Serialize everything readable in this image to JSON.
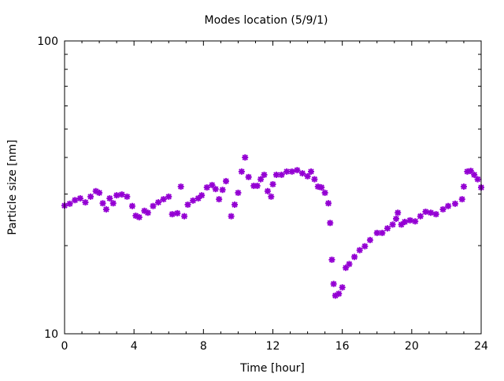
{
  "chart_data": {
    "type": "scatter",
    "title": "Modes location (5/9/1)",
    "xlabel": "Time [hour]",
    "ylabel": "Particle size [nm]",
    "xlim": [
      0,
      24
    ],
    "ylim": [
      10,
      100
    ],
    "yscale": "log",
    "xticks": [
      "0",
      "4",
      "8",
      "12",
      "16",
      "20",
      "24"
    ],
    "yticks": [
      "10",
      "100"
    ],
    "grid": false,
    "marker_color": "#9400d3",
    "x": [
      0,
      0.3,
      0.6,
      0.9,
      1.2,
      1.5,
      1.8,
      2.0,
      2.2,
      2.4,
      2.6,
      2.8,
      3.0,
      3.3,
      3.6,
      3.9,
      4.1,
      4.3,
      4.6,
      4.8,
      5.1,
      5.4,
      5.7,
      6.0,
      6.2,
      6.5,
      6.7,
      6.9,
      7.1,
      7.4,
      7.7,
      7.9,
      8.2,
      8.5,
      8.7,
      8.9,
      9.1,
      9.3,
      9.6,
      9.8,
      10.0,
      10.2,
      10.4,
      10.6,
      10.9,
      11.1,
      11.3,
      11.5,
      11.7,
      11.9,
      12.0,
      12.2,
      12.5,
      12.8,
      13.1,
      13.4,
      13.7,
      14.0,
      14.2,
      14.4,
      14.6,
      14.8,
      15.0,
      15.2,
      15.3,
      15.4,
      15.5,
      15.6,
      15.8,
      16.0,
      16.2,
      16.4,
      16.7,
      17.0,
      17.3,
      17.6,
      18.0,
      18.3,
      18.6,
      18.9,
      19.1,
      19.2,
      19.4,
      19.6,
      19.9,
      20.2,
      20.5,
      20.8,
      21.1,
      21.4,
      21.8,
      22.1,
      22.5,
      22.9,
      23.0,
      23.2,
      23.4,
      23.6,
      23.8,
      24.0
    ],
    "y": [
      27.4,
      27.8,
      28.6,
      29.0,
      28.1,
      29.4,
      30.7,
      30.3,
      27.9,
      26.6,
      29.0,
      27.9,
      29.7,
      29.9,
      29.4,
      27.3,
      25.3,
      25.0,
      26.3,
      25.9,
      27.3,
      28.1,
      28.8,
      29.4,
      25.6,
      25.8,
      31.8,
      25.2,
      27.6,
      28.5,
      29.0,
      29.7,
      31.6,
      32.2,
      31.2,
      28.8,
      31.0,
      33.2,
      25.2,
      27.6,
      30.3,
      35.8,
      40.0,
      34.3,
      32.0,
      32.0,
      33.7,
      34.9,
      30.7,
      29.4,
      32.4,
      34.9,
      34.9,
      35.8,
      35.8,
      36.2,
      35.3,
      34.5,
      35.8,
      33.7,
      31.8,
      31.6,
      30.3,
      27.9,
      23.9,
      17.9,
      14.8,
      13.5,
      13.7,
      14.4,
      16.8,
      17.3,
      18.3,
      19.3,
      19.9,
      20.9,
      22.1,
      22.1,
      22.9,
      23.6,
      24.7,
      25.9,
      23.6,
      24.1,
      24.4,
      24.2,
      25.2,
      26.1,
      25.9,
      25.6,
      26.6,
      27.3,
      27.8,
      28.8,
      31.8,
      35.8,
      36.0,
      34.9,
      33.7,
      31.6
    ]
  }
}
